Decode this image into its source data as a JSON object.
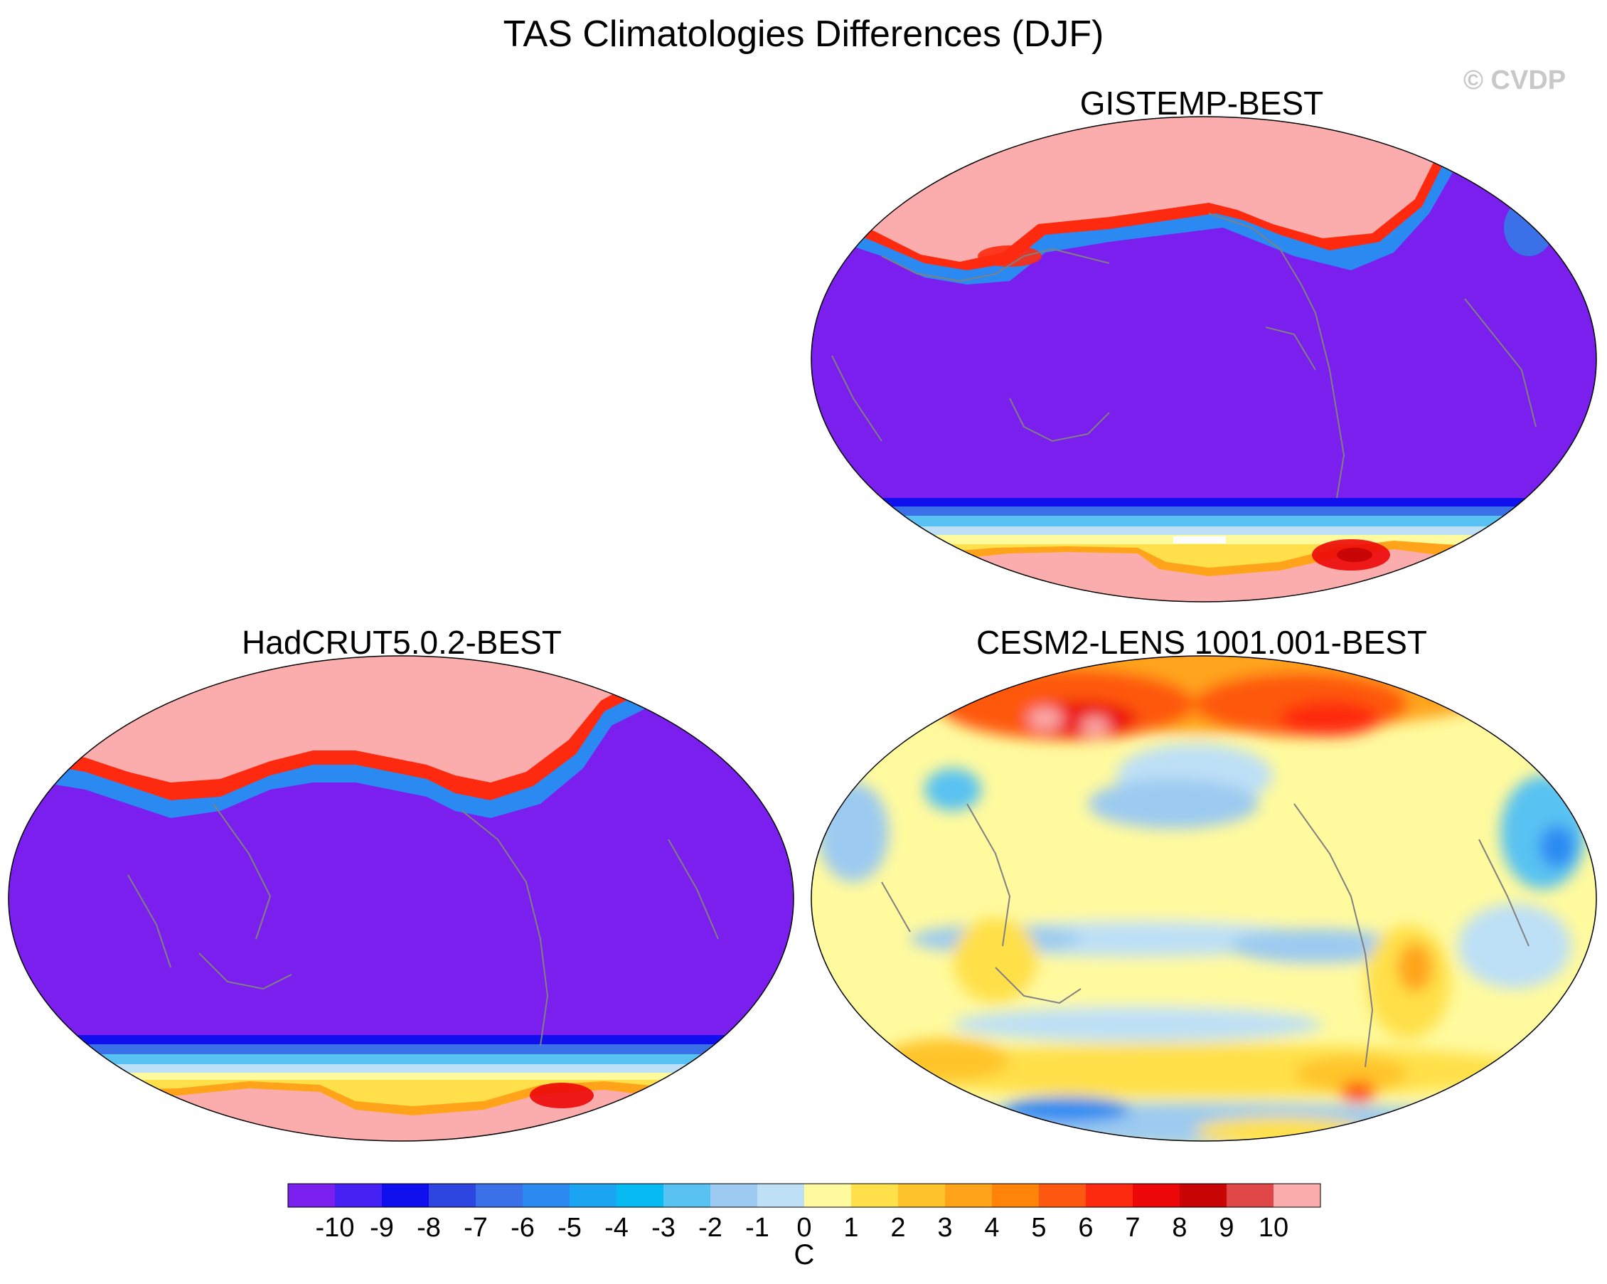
{
  "title": "TAS Climatologies Differences (DJF)",
  "watermark": "© CVDP",
  "units": "C",
  "panels": [
    {
      "title": "GISTEMP-BEST"
    },
    {
      "title": "HadCRUT5.0.2-BEST"
    },
    {
      "title": "CESM2-LENS 1001.001-BEST"
    }
  ],
  "colorbar": {
    "labels": [
      "-10",
      "-9",
      "-8",
      "-7",
      "-6",
      "-5",
      "-4",
      "-3",
      "-2",
      "-1",
      "0",
      "1",
      "2",
      "3",
      "4",
      "5",
      "6",
      "7",
      "8",
      "9",
      "10"
    ],
    "colors": [
      "#7a1fee",
      "#4420f2",
      "#1010ee",
      "#2e46e0",
      "#3a70e8",
      "#2a8af2",
      "#1aa4f2",
      "#08baf2",
      "#58c2f2",
      "#9ccaf0",
      "#bee0f6",
      "#fffa9e",
      "#ffe04a",
      "#ffc42c",
      "#ffa41a",
      "#ff8408",
      "#fe5810",
      "#fe2a10",
      "#ec0808",
      "#c80606",
      "#e04848",
      "#fbadad"
    ]
  },
  "palette": {
    "ocean_deep": "#7a1fee",
    "land_pink": "#fbadad",
    "coast": "#808080"
  }
}
